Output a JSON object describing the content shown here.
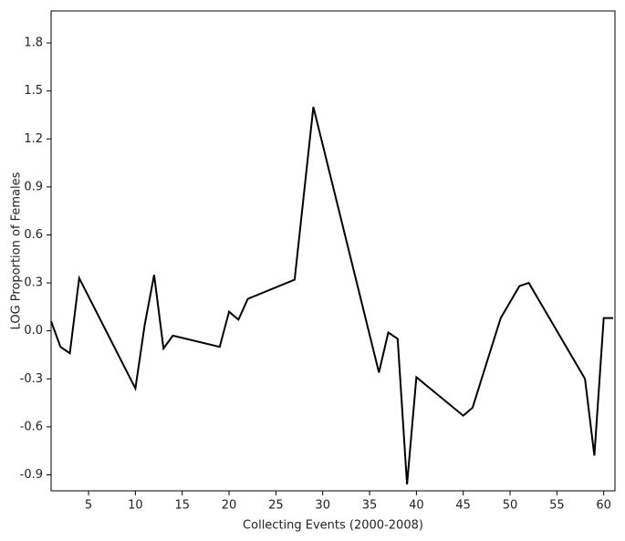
{
  "chart_data": {
    "type": "line",
    "xlabel": "Collecting Events (2000-2008)",
    "ylabel": "LOG Proportion of Females",
    "x": [
      1,
      2,
      3,
      4,
      10,
      11,
      12,
      13,
      14,
      19,
      20,
      21,
      22,
      27,
      29,
      36,
      37,
      38,
      39,
      40,
      45,
      46,
      49,
      51,
      52,
      58,
      59,
      60,
      61
    ],
    "series": [
      {
        "color": "#000000",
        "values": [
          0.06,
          -0.1,
          -0.14,
          0.33,
          -0.36,
          0.04,
          0.35,
          -0.11,
          -0.03,
          -0.1,
          0.12,
          0.07,
          0.2,
          0.32,
          1.4,
          -0.26,
          -0.01,
          -0.05,
          -0.96,
          -0.29,
          -0.53,
          -0.48,
          0.08,
          0.28,
          0.3,
          -0.3,
          -0.78,
          0.08,
          0.08
        ]
      }
    ],
    "xlim": [
      1,
      61.2
    ],
    "ylim": [
      -1.0,
      2.0
    ],
    "xticks": [
      5,
      10,
      15,
      20,
      25,
      30,
      35,
      40,
      45,
      50,
      55,
      60
    ],
    "yticks": [
      {
        "value": -0.9,
        "label": "-0.9"
      },
      {
        "value": -0.6,
        "label": "-0.6"
      },
      {
        "value": -0.3,
        "label": "-0.3"
      },
      {
        "value": 0,
        "label": "0.0"
      },
      {
        "value": 0.3,
        "label": "0.3"
      },
      {
        "value": 0.6,
        "label": "0.6"
      },
      {
        "value": 0.9,
        "label": "0.9"
      },
      {
        "value": 1.2,
        "label": "1.2"
      },
      {
        "value": 1.5,
        "label": "1.5"
      },
      {
        "value": 1.8,
        "label": "1.8"
      }
    ]
  }
}
